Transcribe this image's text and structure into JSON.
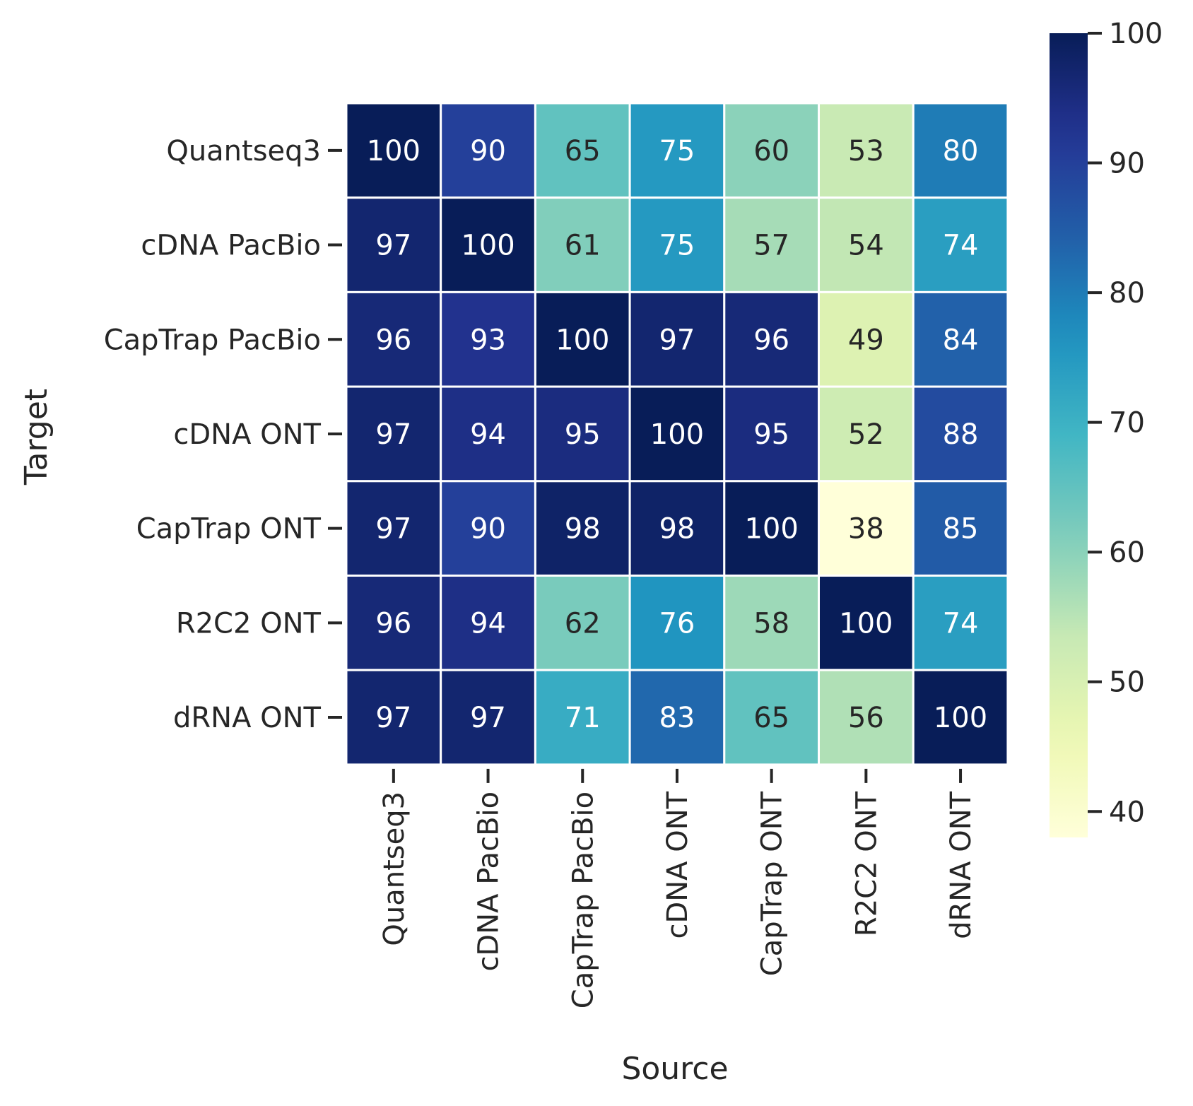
{
  "chart_data": {
    "type": "heatmap",
    "xlabel": "Source",
    "ylabel": "Target",
    "x_categories": [
      "Quantseq3",
      "cDNA PacBio",
      "CapTrap PacBio",
      "cDNA ONT",
      "CapTrap ONT",
      "R2C2 ONT",
      "dRNA ONT"
    ],
    "y_categories": [
      "Quantseq3",
      "cDNA PacBio",
      "CapTrap PacBio",
      "cDNA ONT",
      "CapTrap ONT",
      "R2C2 ONT",
      "dRNA ONT"
    ],
    "values": [
      [
        100,
        90,
        65,
        75,
        60,
        53,
        80
      ],
      [
        97,
        100,
        61,
        75,
        57,
        54,
        74
      ],
      [
        96,
        93,
        100,
        97,
        96,
        49,
        84
      ],
      [
        97,
        94,
        95,
        100,
        95,
        52,
        88
      ],
      [
        97,
        90,
        98,
        98,
        100,
        38,
        85
      ],
      [
        96,
        94,
        62,
        76,
        58,
        100,
        74
      ],
      [
        97,
        97,
        71,
        83,
        65,
        56,
        100
      ]
    ],
    "colorbar": {
      "vmin": 38,
      "vmax": 100,
      "ticks": [
        40,
        50,
        60,
        70,
        80,
        90,
        100
      ],
      "colormap": "YlGnBu"
    },
    "grid": false
  }
}
